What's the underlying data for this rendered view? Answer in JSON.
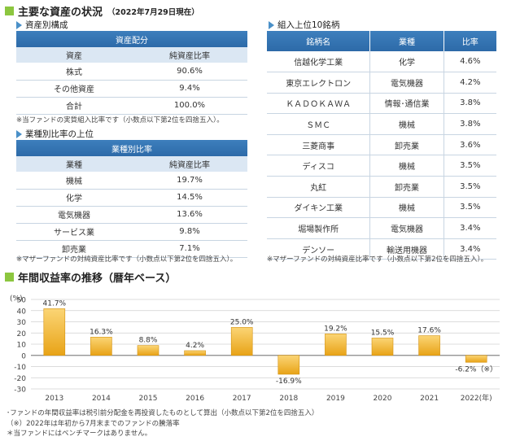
{
  "assets_section": {
    "title": "主要な資産の状況",
    "date": "（2022年7月29日現在）"
  },
  "allocation": {
    "subheading": "資産別構成",
    "caption": "資産配分",
    "headers": [
      "資産",
      "純資産比率"
    ],
    "rows": [
      [
        "株式",
        "90.6%"
      ],
      [
        "その他資産",
        "9.4%"
      ],
      [
        "合計",
        "100.0%"
      ]
    ],
    "note": "※当ファンドの実質組入比率です（小数点以下第2位を四捨五入）。"
  },
  "industry": {
    "subheading": "業種別比率の上位",
    "caption": "業種別比率",
    "headers": [
      "業種",
      "純資産比率"
    ],
    "rows": [
      [
        "機械",
        "19.7%"
      ],
      [
        "化学",
        "14.5%"
      ],
      [
        "電気機器",
        "13.6%"
      ],
      [
        "サービス業",
        "9.8%"
      ],
      [
        "卸売業",
        "7.1%"
      ]
    ],
    "note": "※マザーファンドの対純資産比率です（小数点以下第2位を四捨五入）。"
  },
  "holdings": {
    "subheading": "組入上位10銘柄",
    "headers": [
      "銘柄名",
      "業種",
      "比率"
    ],
    "rows": [
      [
        "信越化学工業",
        "化学",
        "4.6%"
      ],
      [
        "東京エレクトロン",
        "電気機器",
        "4.2%"
      ],
      [
        "ＫＡＤＯＫＡＷＡ",
        "情報･通信業",
        "3.8%"
      ],
      [
        "ＳＭＣ",
        "機械",
        "3.8%"
      ],
      [
        "三菱商事",
        "卸売業",
        "3.6%"
      ],
      [
        "ディスコ",
        "機械",
        "3.5%"
      ],
      [
        "丸紅",
        "卸売業",
        "3.5%"
      ],
      [
        "ダイキン工業",
        "機械",
        "3.5%"
      ],
      [
        "堀場製作所",
        "電気機器",
        "3.4%"
      ],
      [
        "デンソー",
        "輸送用機器",
        "3.4%"
      ]
    ],
    "note": "※マザーファンドの対純資産比率です（小数点以下第2位を四捨五入）。"
  },
  "returns_section": {
    "title": "年間収益率の推移（暦年ベース）"
  },
  "chart_data": {
    "type": "bar",
    "categories": [
      "2013",
      "2014",
      "2015",
      "2016",
      "2017",
      "2018",
      "2019",
      "2020",
      "2021",
      "2022(年)"
    ],
    "values": [
      41.7,
      16.3,
      8.8,
      4.2,
      25.0,
      -16.9,
      19.2,
      15.5,
      17.6,
      -6.2
    ],
    "labels": [
      "41.7%",
      "16.3%",
      "8.8%",
      "4.2%",
      "25.0%",
      "-16.9%",
      "19.2%",
      "15.5%",
      "17.6%",
      "-6.2%（※）"
    ],
    "ylabel": "(%)",
    "ylim": [
      -30,
      50
    ],
    "yticks": [
      50,
      40,
      30,
      20,
      10,
      0,
      -10,
      -20,
      -30
    ],
    "grid": true,
    "colors": {
      "bar_top": "#fbd575",
      "bar_bottom": "#e8a317",
      "bar_edge": "#d4920f",
      "grid": "#d0d0d0"
    }
  },
  "chart_notes": [
    "･ファンドの年間収益率は税引前分配金を再投資したものとして算出（小数点以下第2位を四捨五入）",
    "（※）2022年は年初から7月末までのファンドの騰落率",
    "＊当ファンドにはベンチマークはありません。"
  ],
  "colors": {
    "accent_green": "#8cc63f",
    "table_header_blue": "#2d6aa8",
    "column_header_bg": "#dbe7f3"
  }
}
